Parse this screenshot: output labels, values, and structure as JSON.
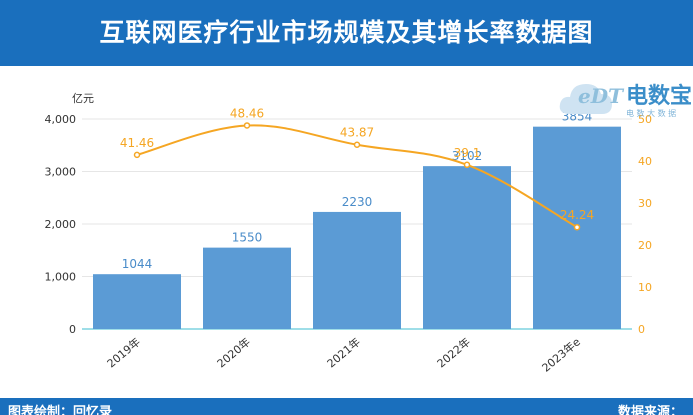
{
  "header": {
    "title": "互联网医疗行业市场规模及其增长率数据图"
  },
  "logo": {
    "mark": "eDT",
    "name": "电数宝",
    "tagline": "电 数 大 数 据"
  },
  "footer": {
    "left": "图表绘制：回忆录",
    "right": "数据来源："
  },
  "colors": {
    "header_bg": "#1a6fbd",
    "bar": "#5b9bd5",
    "line": "#f5a623",
    "baseline": "#7fd4e0"
  },
  "chart_data": {
    "type": "bar+line",
    "categories": [
      "2019年",
      "2020年",
      "2021年",
      "2022年",
      "2023年e"
    ],
    "series": [
      {
        "values": [
          1044,
          1550,
          2230,
          3102,
          3854
        ],
        "type": "bar",
        "axis": "left",
        "color": "#5b9bd5"
      },
      {
        "values": [
          41.46,
          48.46,
          43.87,
          39.1,
          24.24
        ],
        "type": "line",
        "axis": "right",
        "color": "#f5a623"
      }
    ],
    "ylabel": "亿元",
    "ylim": [
      0,
      4000
    ],
    "yticks": [
      "0",
      "1,000",
      "2,000",
      "3,000",
      "4,000"
    ],
    "y2lim": [
      0,
      50
    ],
    "y2ticks": [
      "0",
      "10",
      "20",
      "30",
      "40",
      "50"
    ],
    "grid": true,
    "bar_labels": [
      "1044",
      "1550",
      "2230",
      "3102",
      "3854"
    ],
    "line_labels": [
      "41.46",
      "48.46",
      "43.87",
      "39.1",
      "24.24"
    ]
  }
}
